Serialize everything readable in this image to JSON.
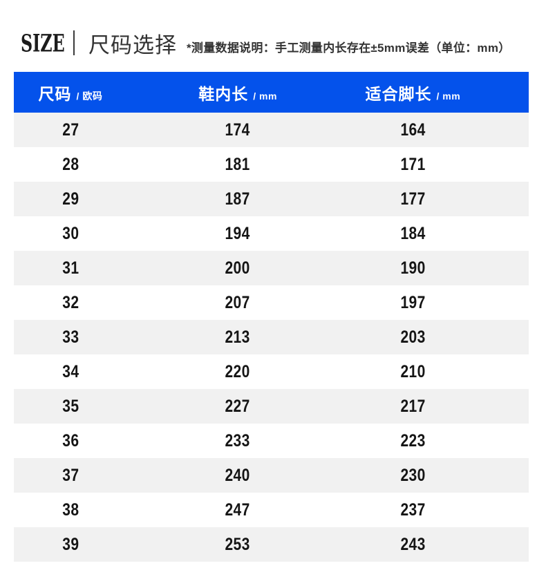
{
  "page": {
    "header": {
      "size_label": "SIZE",
      "title": "尺码选择",
      "note": "*测量数据说明：手工测量内长存在±5mm误差（单位：mm）"
    }
  },
  "chart_data": {
    "type": "table",
    "title": "尺码选择 size chart",
    "columns": [
      {
        "label": "尺码",
        "unit": "/ 欧码"
      },
      {
        "label": "鞋内长",
        "unit": "/ mm"
      },
      {
        "label": "适合脚长",
        "unit": "/ mm"
      }
    ],
    "rows": [
      [
        27,
        174,
        164
      ],
      [
        28,
        181,
        171
      ],
      [
        29,
        187,
        177
      ],
      [
        30,
        194,
        184
      ],
      [
        31,
        200,
        190
      ],
      [
        32,
        207,
        197
      ],
      [
        33,
        213,
        203
      ],
      [
        34,
        220,
        210
      ],
      [
        35,
        227,
        217
      ],
      [
        36,
        233,
        223
      ],
      [
        37,
        240,
        230
      ],
      [
        38,
        247,
        237
      ],
      [
        39,
        253,
        243
      ]
    ]
  },
  "colors": {
    "table_header_bg": "#0452EB",
    "row_alt_bg": "#F1F1F1",
    "header_text": "#FFFFFF"
  }
}
